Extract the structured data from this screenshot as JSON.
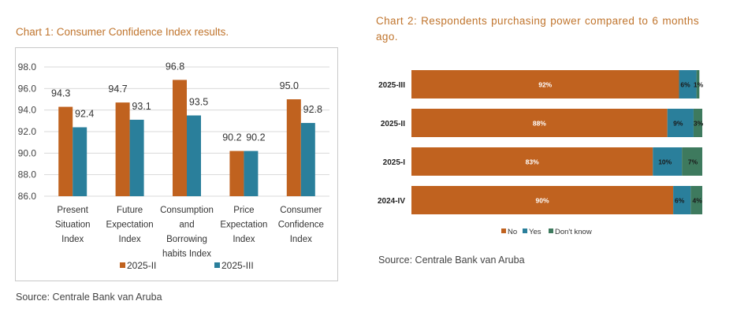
{
  "colors": {
    "s1": "#c0621f",
    "s2": "#2a7f9b",
    "s3": "#3e7a5e",
    "title": "#c0752e"
  },
  "chart1": {
    "title": "Chart 1: Consumer Confidence Index results.",
    "source": "Source: Centrale Bank van Aruba"
  },
  "chart2": {
    "title": "Chart 2: Respondents purchasing power compared to 6 months ago.",
    "source": "Source: Centrale Bank van Aruba"
  },
  "chart_data": [
    {
      "type": "bar",
      "title": "Chart 1: Consumer Confidence Index results.",
      "categories": [
        [
          "Present",
          "Situation",
          "Index"
        ],
        [
          "Future",
          "Expectation",
          "Index"
        ],
        [
          "Consumption",
          "and",
          "Borrowing",
          "habits Index"
        ],
        [
          "Price",
          "Expectation",
          "Index"
        ],
        [
          "Consumer",
          "Confidence",
          "Index"
        ]
      ],
      "series": [
        {
          "name": "2025-II",
          "values": [
            94.3,
            94.7,
            96.8,
            90.2,
            95.0
          ],
          "labels": [
            "94.3",
            "94.7",
            "96.8",
            "90.2",
            "95.0"
          ]
        },
        {
          "name": "2025-III",
          "values": [
            92.4,
            93.1,
            93.5,
            90.2,
            92.8
          ],
          "labels": [
            "92.4",
            "93.1",
            "93.5",
            "90.2",
            "92.8"
          ]
        }
      ],
      "yticks": [
        "98.0",
        "96.0",
        "94.0",
        "92.0",
        "90.0",
        "88.0",
        "86.0"
      ],
      "ylim": [
        86,
        98
      ],
      "grid": true,
      "legend": "bottom"
    },
    {
      "type": "bar",
      "orientation": "horizontal-stacked",
      "title": "Chart 2: Respondents purchasing power compared to 6 months ago.",
      "categories": [
        "2025-III",
        "2025-II",
        "2025-I",
        "2024-IV"
      ],
      "series": [
        {
          "name": "No",
          "values": [
            92,
            88,
            83,
            90
          ],
          "labels": [
            "92%",
            "88%",
            "83%",
            "90%"
          ]
        },
        {
          "name": "Yes",
          "values": [
            6,
            9,
            10,
            6
          ],
          "labels": [
            "6%",
            "9%",
            "10%",
            "6%"
          ]
        },
        {
          "name": "Don't know",
          "values": [
            1,
            3,
            7,
            4
          ],
          "labels": [
            "1%",
            "3%",
            "7%",
            "4%"
          ]
        }
      ],
      "xlim": [
        0,
        100
      ],
      "legend": "bottom"
    }
  ]
}
